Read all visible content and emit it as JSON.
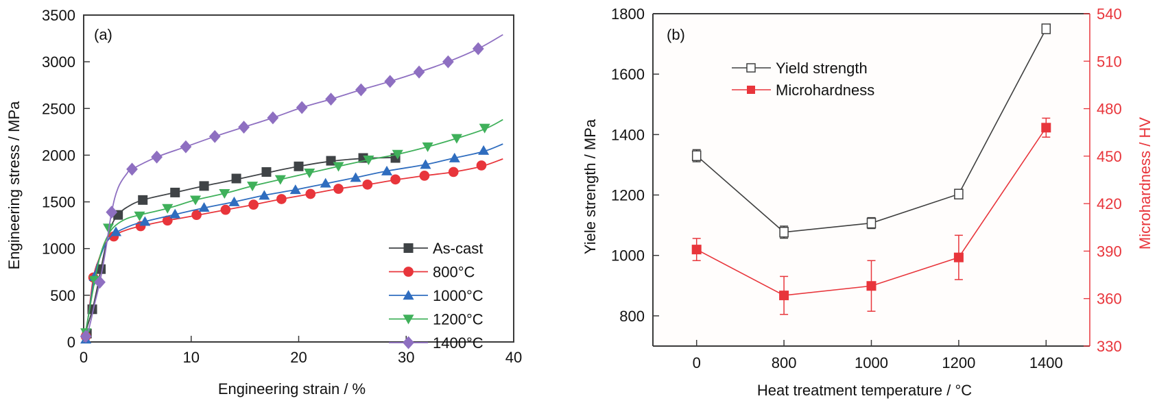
{
  "chart_data": [
    {
      "type": "line",
      "panel_label": "(a)",
      "title": "",
      "xlabel": "Engineering strain / %",
      "ylabel": "Engineering stress / MPa",
      "xlim": [
        0,
        40
      ],
      "ylim": [
        0,
        3500
      ],
      "xticks": [
        0,
        10,
        20,
        30,
        40
      ],
      "yticks": [
        0,
        500,
        1000,
        1500,
        2000,
        2500,
        3000,
        3500
      ],
      "grid": false,
      "legend_position": "bottom-right",
      "series": [
        {
          "name": "As-cast",
          "color": "#3f4346",
          "marker": "square",
          "curve": [
            [
              0,
              0
            ],
            [
              0.3,
              150
            ],
            [
              0.8,
              340
            ],
            [
              1.3,
              600
            ],
            [
              1.6,
              780
            ],
            [
              2.1,
              1050
            ],
            [
              2.6,
              1250
            ],
            [
              3.2,
              1360
            ],
            [
              4,
              1440
            ],
            [
              5.5,
              1520
            ],
            [
              8.5,
              1600
            ],
            [
              11.2,
              1670
            ],
            [
              14.2,
              1740
            ],
            [
              17,
              1810
            ],
            [
              20,
              1880
            ],
            [
              23,
              1935
            ],
            [
              26,
              1965
            ],
            [
              29,
              1975
            ]
          ],
          "markers": [
            [
              0.3,
              90
            ],
            [
              0.8,
              350
            ],
            [
              1.6,
              780
            ],
            [
              3.2,
              1360
            ],
            [
              5.5,
              1520
            ],
            [
              8.5,
              1600
            ],
            [
              11.2,
              1670
            ],
            [
              14.2,
              1750
            ],
            [
              17,
              1820
            ],
            [
              20,
              1880
            ],
            [
              23,
              1940
            ],
            [
              26,
              1970
            ],
            [
              29,
              1970
            ]
          ]
        },
        {
          "name": "800°C",
          "color": "#e8353b",
          "marker": "circle",
          "curve": [
            [
              0,
              0
            ],
            [
              0.4,
              250
            ],
            [
              0.9,
              690
            ],
            [
              1.4,
              880
            ],
            [
              2,
              1050
            ],
            [
              2.8,
              1140
            ],
            [
              4,
              1200
            ],
            [
              5.3,
              1240
            ],
            [
              7.8,
              1300
            ],
            [
              10.5,
              1355
            ],
            [
              13.2,
              1415
            ],
            [
              15.8,
              1470
            ],
            [
              18.4,
              1530
            ],
            [
              21.1,
              1585
            ],
            [
              23.7,
              1640
            ],
            [
              26.4,
              1685
            ],
            [
              29,
              1735
            ],
            [
              31.7,
              1780
            ],
            [
              34.4,
              1820
            ],
            [
              37,
              1880
            ],
            [
              39,
              1960
            ]
          ],
          "markers": [
            [
              0.2,
              60
            ],
            [
              0.9,
              690
            ],
            [
              2.8,
              1130
            ],
            [
              5.3,
              1240
            ],
            [
              7.8,
              1300
            ],
            [
              10.5,
              1360
            ],
            [
              13.2,
              1415
            ],
            [
              15.8,
              1470
            ],
            [
              18.4,
              1530
            ],
            [
              21.1,
              1585
            ],
            [
              23.7,
              1640
            ],
            [
              26.4,
              1685
            ],
            [
              29,
              1740
            ],
            [
              31.7,
              1780
            ],
            [
              34.4,
              1820
            ],
            [
              37,
              1890
            ]
          ]
        },
        {
          "name": "1000°C",
          "color": "#2f6dbf",
          "marker": "triangle-up",
          "curve": [
            [
              0,
              0
            ],
            [
              0.4,
              250
            ],
            [
              1,
              700
            ],
            [
              1.5,
              900
            ],
            [
              2.2,
              1080
            ],
            [
              3,
              1170
            ],
            [
              4.5,
              1250
            ],
            [
              5.7,
              1290
            ],
            [
              8.5,
              1365
            ],
            [
              11.2,
              1435
            ],
            [
              14,
              1500
            ],
            [
              16.8,
              1570
            ],
            [
              19.7,
              1630
            ],
            [
              22.5,
              1695
            ],
            [
              25.3,
              1760
            ],
            [
              28.2,
              1830
            ],
            [
              31.8,
              1900
            ],
            [
              34.5,
              1970
            ],
            [
              37.2,
              2040
            ],
            [
              39,
              2120
            ]
          ],
          "markers": [
            [
              0.2,
              30
            ],
            [
              1,
              700
            ],
            [
              3,
              1180
            ],
            [
              5.7,
              1290
            ],
            [
              8.5,
              1370
            ],
            [
              11.2,
              1440
            ],
            [
              14,
              1500
            ],
            [
              16.8,
              1570
            ],
            [
              19.7,
              1630
            ],
            [
              22.5,
              1700
            ],
            [
              25.3,
              1760
            ],
            [
              28.2,
              1830
            ],
            [
              31.8,
              1900
            ],
            [
              34.5,
              1970
            ],
            [
              37.2,
              2050
            ]
          ]
        },
        {
          "name": "1200°C",
          "color": "#3fb05a",
          "marker": "triangle-down",
          "curve": [
            [
              0,
              0
            ],
            [
              0.4,
              250
            ],
            [
              1,
              640
            ],
            [
              1.6,
              950
            ],
            [
              2.3,
              1150
            ],
            [
              3,
              1250
            ],
            [
              4,
              1320
            ],
            [
              5.2,
              1360
            ],
            [
              7.8,
              1430
            ],
            [
              10.4,
              1520
            ],
            [
              13.1,
              1590
            ],
            [
              15.7,
              1670
            ],
            [
              18.3,
              1740
            ],
            [
              21,
              1810
            ],
            [
              23.7,
              1880
            ],
            [
              26.5,
              1950
            ],
            [
              29.2,
              2010
            ],
            [
              32,
              2090
            ],
            [
              34.7,
              2180
            ],
            [
              37.3,
              2280
            ],
            [
              39,
              2380
            ]
          ],
          "markers": [
            [
              0.2,
              100
            ],
            [
              1,
              660
            ],
            [
              2.3,
              1220
            ],
            [
              5.2,
              1350
            ],
            [
              7.8,
              1430
            ],
            [
              10.4,
              1520
            ],
            [
              13.1,
              1590
            ],
            [
              15.7,
              1670
            ],
            [
              18.3,
              1740
            ],
            [
              21,
              1810
            ],
            [
              23.7,
              1880
            ],
            [
              26.5,
              1950
            ],
            [
              29.2,
              2010
            ],
            [
              32,
              2090
            ],
            [
              34.7,
              2180
            ],
            [
              37.3,
              2290
            ]
          ]
        },
        {
          "name": "1400°C",
          "color": "#8e6fc1",
          "marker": "diamond",
          "curve": [
            [
              0,
              0
            ],
            [
              0.5,
              150
            ],
            [
              1,
              400
            ],
            [
              1.5,
              640
            ],
            [
              2,
              950
            ],
            [
              2.6,
              1390
            ],
            [
              3.2,
              1650
            ],
            [
              4,
              1800
            ],
            [
              4.5,
              1850
            ],
            [
              6.8,
              1980
            ],
            [
              9.5,
              2090
            ],
            [
              12.2,
              2200
            ],
            [
              14.9,
              2300
            ],
            [
              17.6,
              2400
            ],
            [
              20.3,
              2510
            ],
            [
              23,
              2600
            ],
            [
              25.8,
              2700
            ],
            [
              28.5,
              2790
            ],
            [
              31.2,
              2890
            ],
            [
              33.9,
              3000
            ],
            [
              36.7,
              3140
            ],
            [
              39,
              3290
            ]
          ],
          "markers": [
            [
              0.2,
              60
            ],
            [
              1.5,
              640
            ],
            [
              2.6,
              1390
            ],
            [
              4.5,
              1850
            ],
            [
              6.8,
              1980
            ],
            [
              9.5,
              2090
            ],
            [
              12.2,
              2200
            ],
            [
              14.9,
              2300
            ],
            [
              17.6,
              2400
            ],
            [
              20.3,
              2510
            ],
            [
              23,
              2600
            ],
            [
              25.8,
              2700
            ],
            [
              28.5,
              2790
            ],
            [
              31.2,
              2890
            ],
            [
              33.9,
              3000
            ],
            [
              36.7,
              3140
            ]
          ]
        }
      ]
    },
    {
      "type": "line",
      "panel_label": "(b)",
      "title": "",
      "xlabel": "Heat treatment temperature / °C",
      "ylabel": "Yiele strength / MPa",
      "y2label": "Microhardness / HV",
      "categories": [
        "0",
        "800",
        "1000",
        "1200",
        "1400"
      ],
      "xlim_categories": [
        -0.5,
        4.5
      ],
      "ylim": [
        700,
        1800
      ],
      "yticks": [
        800,
        1000,
        1200,
        1400,
        1600,
        1800
      ],
      "y2lim": [
        330,
        540
      ],
      "y2ticks": [
        330,
        360,
        390,
        420,
        450,
        480,
        510,
        540
      ],
      "grid": false,
      "legend_position": "top-left",
      "axis2_color": "#e8353b",
      "series": [
        {
          "name": "Yield strength",
          "axis": "left",
          "color": "#3f3f3f",
          "marker": "open-square",
          "values": [
            1330,
            1077,
            1107,
            1203,
            1750
          ],
          "errors": [
            20,
            20,
            18,
            15,
            15
          ]
        },
        {
          "name": "Microhardness",
          "axis": "right",
          "color": "#e8353b",
          "marker": "filled-square",
          "values": [
            391,
            362,
            368,
            386,
            468
          ],
          "errors": [
            7,
            12,
            16,
            14,
            6
          ]
        }
      ]
    }
  ]
}
